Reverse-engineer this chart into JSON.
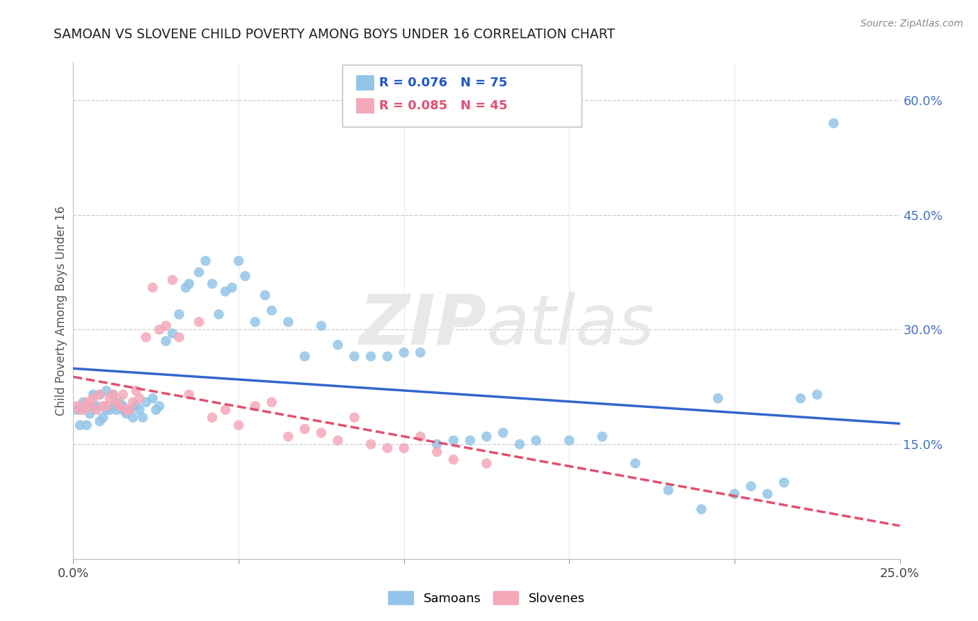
{
  "title": "SAMOAN VS SLOVENE CHILD POVERTY AMONG BOYS UNDER 16 CORRELATION CHART",
  "source": "Source: ZipAtlas.com",
  "ylabel": "Child Poverty Among Boys Under 16",
  "xlim": [
    0.0,
    0.25
  ],
  "ylim": [
    0.0,
    0.65
  ],
  "xtick_positions": [
    0.0,
    0.05,
    0.1,
    0.15,
    0.2,
    0.25
  ],
  "xtick_labels": [
    "0.0%",
    "",
    "",
    "",
    "",
    "25.0%"
  ],
  "ytick_positions": [
    0.15,
    0.3,
    0.45,
    0.6
  ],
  "ytick_labels": [
    "15.0%",
    "30.0%",
    "45.0%",
    "60.0%"
  ],
  "samoan_color": "#92C5E8",
  "slovene_color": "#F4A8B8",
  "trend_samoan_color": "#3366CC",
  "trend_slovene_color": "#E05070",
  "legend_R_samoan": "0.076",
  "legend_N_samoan": "75",
  "legend_R_slovene": "0.085",
  "legend_N_slovene": "45",
  "samoan_x": [
    0.001,
    0.002,
    0.003,
    0.004,
    0.005,
    0.006,
    0.006,
    0.007,
    0.008,
    0.008,
    0.009,
    0.01,
    0.01,
    0.011,
    0.012,
    0.012,
    0.013,
    0.014,
    0.015,
    0.015,
    0.016,
    0.017,
    0.018,
    0.019,
    0.02,
    0.021,
    0.022,
    0.024,
    0.025,
    0.026,
    0.028,
    0.03,
    0.032,
    0.034,
    0.035,
    0.038,
    0.04,
    0.042,
    0.044,
    0.046,
    0.048,
    0.05,
    0.052,
    0.055,
    0.058,
    0.06,
    0.065,
    0.07,
    0.075,
    0.08,
    0.085,
    0.09,
    0.095,
    0.1,
    0.105,
    0.11,
    0.115,
    0.12,
    0.125,
    0.13,
    0.135,
    0.14,
    0.15,
    0.16,
    0.17,
    0.18,
    0.19,
    0.195,
    0.2,
    0.205,
    0.21,
    0.215,
    0.22,
    0.225,
    0.23
  ],
  "samoan_y": [
    0.195,
    0.175,
    0.205,
    0.175,
    0.19,
    0.2,
    0.215,
    0.2,
    0.18,
    0.215,
    0.185,
    0.195,
    0.22,
    0.195,
    0.2,
    0.215,
    0.195,
    0.205,
    0.195,
    0.2,
    0.19,
    0.195,
    0.185,
    0.2,
    0.195,
    0.185,
    0.205,
    0.21,
    0.195,
    0.2,
    0.285,
    0.295,
    0.32,
    0.355,
    0.36,
    0.375,
    0.39,
    0.36,
    0.32,
    0.35,
    0.355,
    0.39,
    0.37,
    0.31,
    0.345,
    0.325,
    0.31,
    0.265,
    0.305,
    0.28,
    0.265,
    0.265,
    0.265,
    0.27,
    0.27,
    0.15,
    0.155,
    0.155,
    0.16,
    0.165,
    0.15,
    0.155,
    0.155,
    0.16,
    0.125,
    0.09,
    0.065,
    0.21,
    0.085,
    0.095,
    0.085,
    0.1,
    0.21,
    0.215,
    0.57
  ],
  "slovene_x": [
    0.001,
    0.002,
    0.003,
    0.004,
    0.005,
    0.006,
    0.007,
    0.008,
    0.009,
    0.01,
    0.011,
    0.012,
    0.013,
    0.014,
    0.015,
    0.016,
    0.017,
    0.018,
    0.019,
    0.02,
    0.022,
    0.024,
    0.026,
    0.028,
    0.03,
    0.032,
    0.035,
    0.038,
    0.042,
    0.046,
    0.05,
    0.055,
    0.06,
    0.065,
    0.07,
    0.075,
    0.08,
    0.085,
    0.09,
    0.095,
    0.1,
    0.105,
    0.11,
    0.115,
    0.125
  ],
  "slovene_y": [
    0.2,
    0.195,
    0.195,
    0.205,
    0.2,
    0.21,
    0.195,
    0.215,
    0.2,
    0.2,
    0.21,
    0.215,
    0.205,
    0.2,
    0.215,
    0.195,
    0.195,
    0.205,
    0.22,
    0.21,
    0.29,
    0.355,
    0.3,
    0.305,
    0.365,
    0.29,
    0.215,
    0.31,
    0.185,
    0.195,
    0.175,
    0.2,
    0.205,
    0.16,
    0.17,
    0.165,
    0.155,
    0.185,
    0.15,
    0.145,
    0.145,
    0.16,
    0.14,
    0.13,
    0.125
  ]
}
